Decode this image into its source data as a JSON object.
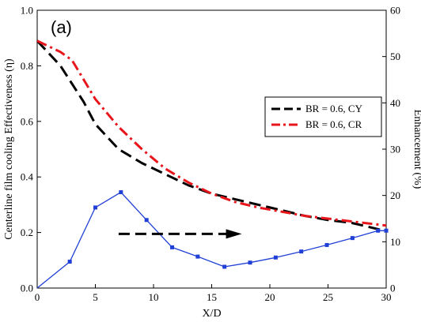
{
  "chart_data": {
    "type": "line",
    "panel_label": "(a)",
    "xlabel": "X/D",
    "ylabel": "Centerline film cooling Effectiveness (η)",
    "y2label": "Enhancement (%)",
    "xlim": [
      0,
      30
    ],
    "ylim": [
      0.0,
      1.0
    ],
    "y2lim": [
      0,
      60
    ],
    "x_ticks": [
      0,
      5,
      10,
      15,
      20,
      25,
      30
    ],
    "y_ticks": [
      "0.0",
      "0.2",
      "0.4",
      "0.6",
      "0.8",
      "1.0"
    ],
    "y2_ticks": [
      0,
      10,
      20,
      30,
      40,
      50,
      60
    ],
    "grid": false,
    "legend_position": "right-middle",
    "series": [
      {
        "name": "BR = 0.6, CY",
        "axis": "left",
        "style": "dashed",
        "color": "#000000",
        "x": [
          0,
          2,
          4,
          5,
          7,
          9,
          11,
          13,
          15,
          17,
          19,
          21,
          23,
          25,
          27,
          30
        ],
        "y": [
          0.89,
          0.8,
          0.67,
          0.59,
          0.5,
          0.45,
          0.41,
          0.37,
          0.34,
          0.32,
          0.3,
          0.28,
          0.26,
          0.245,
          0.235,
          0.205
        ]
      },
      {
        "name": "BR = 0.6, CR",
        "axis": "left",
        "style": "dashdot",
        "color": "#e8151b",
        "x": [
          0,
          1,
          2,
          3,
          4,
          5,
          7,
          9,
          11,
          13,
          15,
          17,
          19,
          21,
          23,
          25,
          27,
          30
        ],
        "y": [
          0.89,
          0.87,
          0.85,
          0.82,
          0.75,
          0.68,
          0.58,
          0.5,
          0.43,
          0.38,
          0.34,
          0.31,
          0.29,
          0.275,
          0.26,
          0.25,
          0.24,
          0.225
        ]
      },
      {
        "axis": "right",
        "style": "solid-markers",
        "color": "#1f3fd6",
        "x": [
          0,
          2.8,
          5.0,
          7.2,
          9.4,
          11.6,
          13.8,
          16.1,
          18.3,
          20.5,
          22.7,
          24.9,
          27.1,
          29.3,
          30
        ],
        "y": [
          0,
          5.7,
          17.4,
          20.7,
          14.7,
          8.8,
          6.8,
          4.6,
          5.5,
          6.6,
          7.9,
          9.3,
          10.8,
          12.4,
          12.4
        ]
      }
    ],
    "annotation_arrow": {
      "x_start": 7,
      "x_end": 16.5,
      "y": 0.195,
      "axis": "left",
      "direction": "right"
    }
  }
}
